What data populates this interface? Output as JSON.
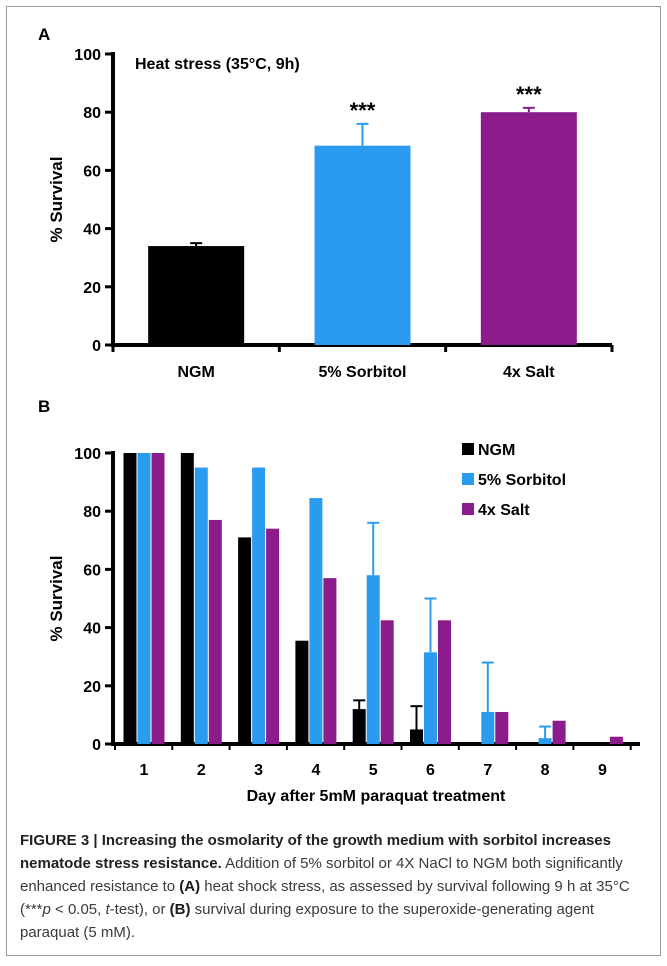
{
  "chart_data": [
    {
      "panel": "A",
      "type": "bar",
      "title": "Heat stress (35°C, 9h)",
      "ylabel": "% Survival",
      "xlabel": "",
      "ylim": [
        0,
        100
      ],
      "yticks": [
        0,
        20,
        40,
        60,
        80,
        100
      ],
      "categories": [
        "NGM",
        "5% Sorbitol",
        "4x Salt"
      ],
      "values": [
        34,
        68.5,
        80
      ],
      "errors": [
        1,
        7.5,
        1.5
      ],
      "annotations": [
        "",
        "***",
        "***"
      ],
      "colors": [
        "#000000",
        "#2b9bf0",
        "#8c1c8c"
      ]
    },
    {
      "panel": "B",
      "type": "bar",
      "title": "",
      "xlabel": "Day after 5mM paraquat treatment",
      "ylabel": "% Survival",
      "ylim": [
        0,
        100
      ],
      "yticks": [
        0,
        20,
        40,
        60,
        80,
        100
      ],
      "categories": [
        "1",
        "2",
        "3",
        "4",
        "5",
        "6",
        "7",
        "8",
        "9"
      ],
      "legend_position": "top-right",
      "series": [
        {
          "name": "NGM",
          "color": "#000000",
          "values": [
            100,
            100,
            71,
            35.5,
            12,
            5,
            0,
            0,
            0
          ],
          "errors": [
            0,
            0,
            0,
            0,
            3,
            8,
            0,
            0,
            0
          ]
        },
        {
          "name": "5% Sorbitol",
          "color": "#2b9bf0",
          "values": [
            100,
            95,
            95,
            84.5,
            58,
            31.5,
            11,
            2,
            0
          ],
          "errors": [
            0,
            0,
            0,
            0,
            18,
            18.5,
            17,
            4,
            0
          ]
        },
        {
          "name": "4x Salt",
          "color": "#8c1c8c",
          "values": [
            100,
            77,
            74,
            57,
            42.5,
            42.5,
            11,
            8,
            2.5
          ],
          "errors": [
            0,
            0,
            0,
            0,
            0,
            0,
            0,
            0,
            0
          ]
        }
      ]
    }
  ],
  "caption": {
    "figure_label": "FIGURE 3 | Increasing the osmolarity of the growth medium with sorbitol increases nematode stress resistance.",
    "text_1": " Addition of 5% sorbitol or 4X NaCl to NGM both significantly enhanced resistance to ",
    "ref_a": "(A)",
    "text_2": " heat shock stress, as assessed by survival following 9 h at 35°C (***",
    "p_italic": "p",
    "text_3": " < 0.05, ",
    "t_italic": "t",
    "text_4": "-test), or ",
    "ref_b": "(B)",
    "text_5": " survival during exposure to the superoxide-generating agent paraquat (5 mM)."
  }
}
